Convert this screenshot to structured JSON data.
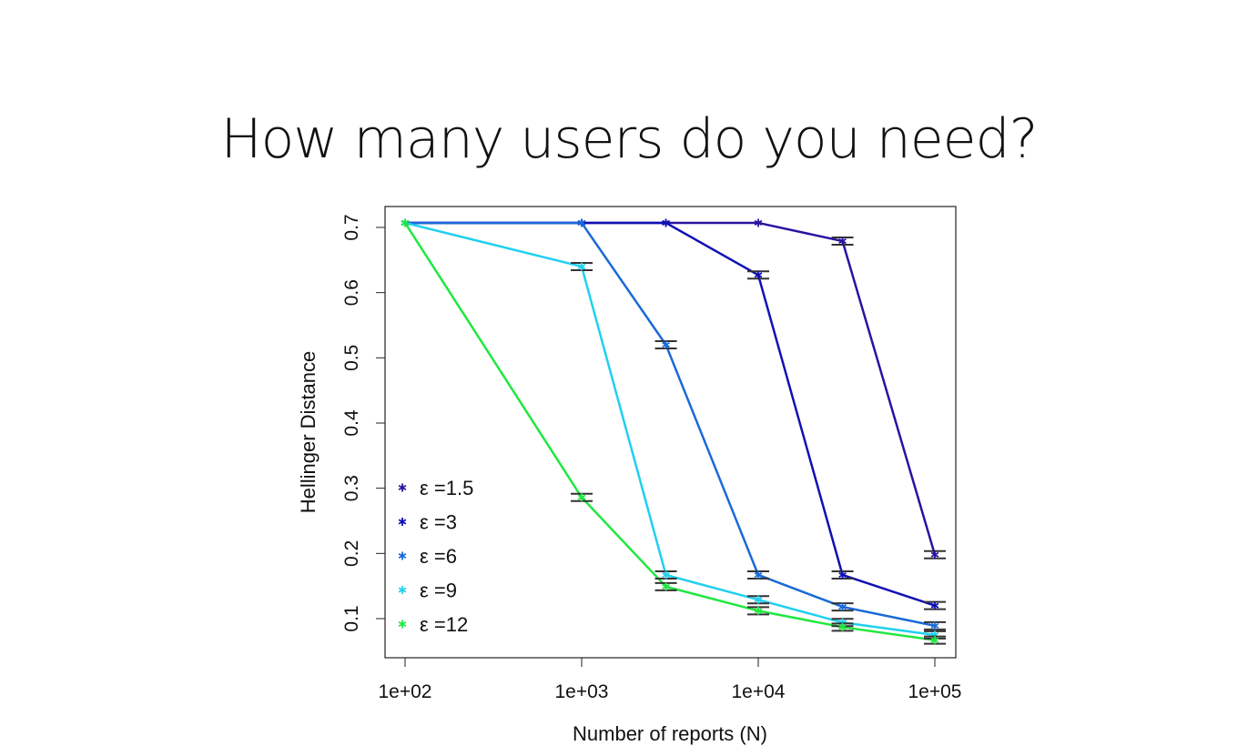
{
  "slide_title": "How many users do you need?",
  "chart_data": {
    "type": "line",
    "title": "",
    "xlabel": "Number of reports (N)",
    "ylabel": "Hellinger Distance",
    "xscale": "log",
    "xlim": [
      100,
      100000
    ],
    "ylim": [
      0.06,
      0.72
    ],
    "xticks": [
      100,
      1000,
      10000,
      100000
    ],
    "xtick_labels": [
      "1e+02",
      "1e+03",
      "1e+04",
      "1e+05"
    ],
    "yticks": [
      0.1,
      0.2,
      0.3,
      0.4,
      0.5,
      0.6,
      0.7
    ],
    "ytick_labels": [
      "0.1",
      "0.2",
      "0.3",
      "0.4",
      "0.5",
      "0.6",
      "0.7"
    ],
    "x": [
      100,
      1000,
      3000,
      10000,
      30000,
      100000
    ],
    "legend_position": "bottom-left",
    "series": [
      {
        "name": "ε =1.5",
        "color": "#2a12a0",
        "values": [
          0.707,
          0.707,
          0.707,
          0.707,
          0.679,
          0.198
        ]
      },
      {
        "name": "ε =3",
        "color": "#1010b4",
        "values": [
          0.707,
          0.707,
          0.707,
          0.627,
          0.167,
          0.12
        ]
      },
      {
        "name": "ε =6",
        "color": "#1a6ad8",
        "values": [
          0.707,
          0.707,
          0.52,
          0.167,
          0.118,
          0.089
        ]
      },
      {
        "name": "ε =9",
        "color": "#20d0f0",
        "values": [
          0.707,
          0.64,
          0.167,
          0.129,
          0.094,
          0.075
        ]
      },
      {
        "name": "ε =12",
        "color": "#20e840",
        "values": [
          0.707,
          0.286,
          0.149,
          0.112,
          0.087,
          0.067
        ]
      }
    ]
  }
}
